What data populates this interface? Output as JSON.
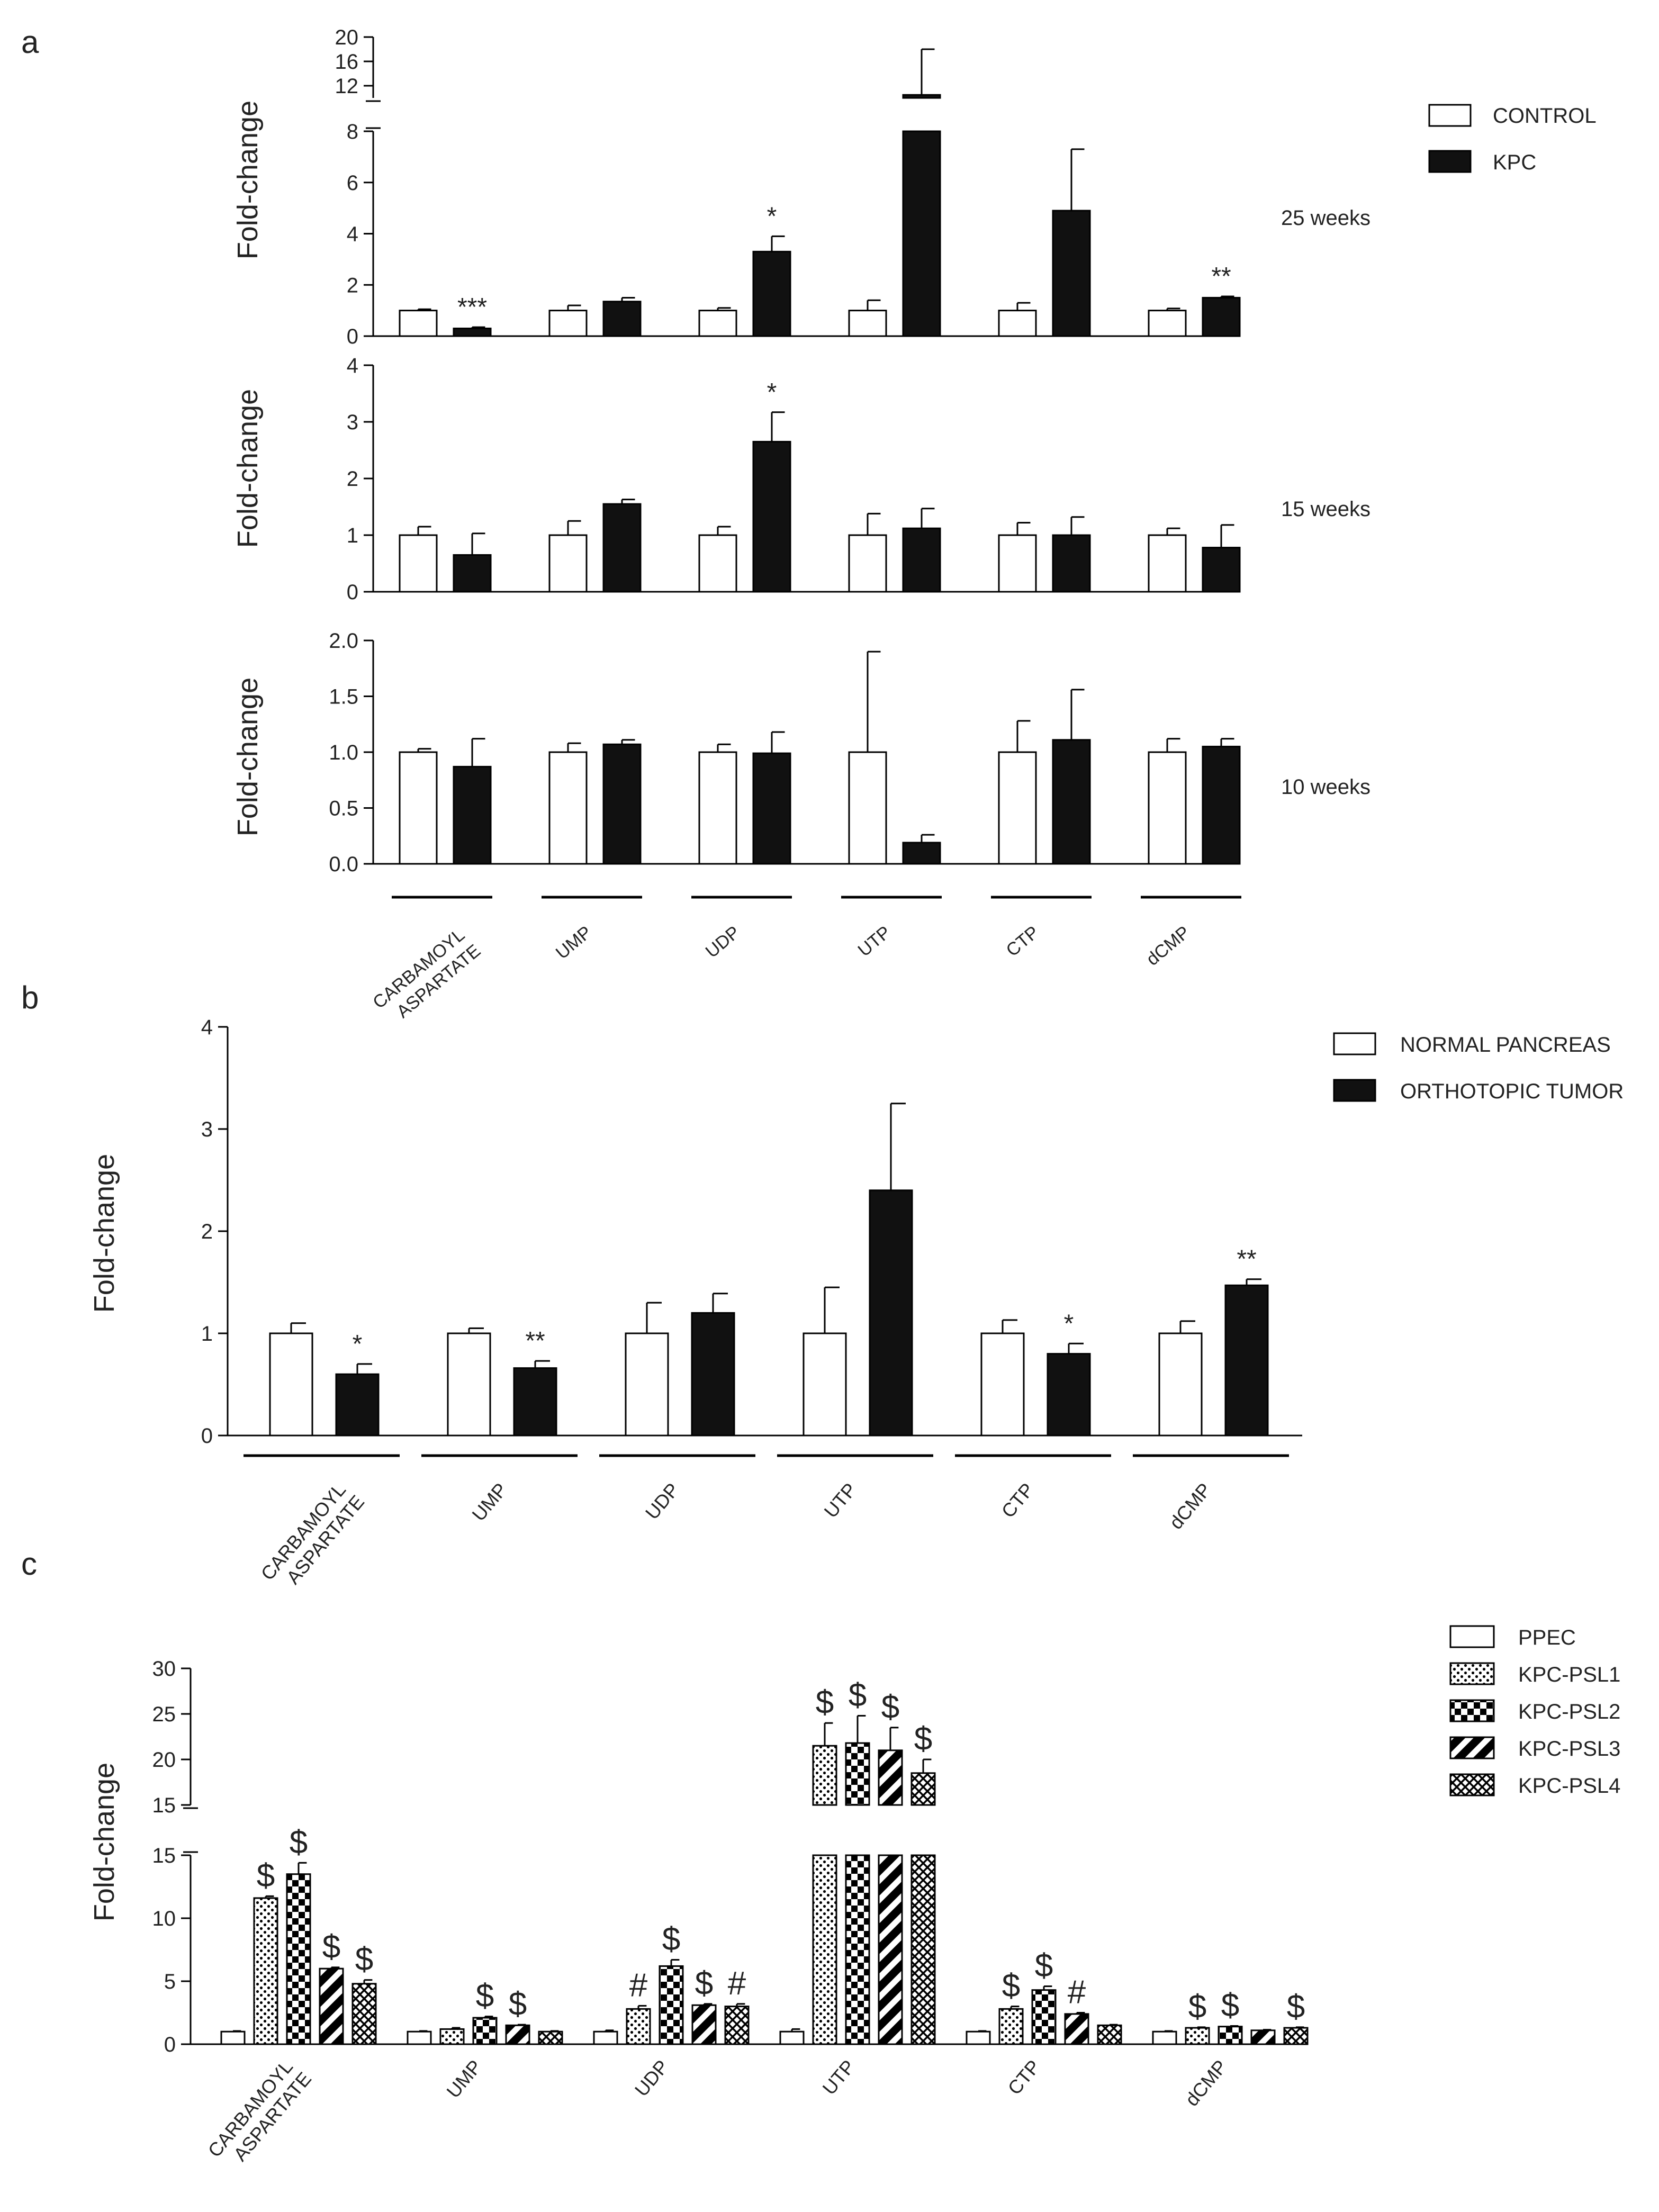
{
  "chart_data": [
    {
      "type": "bar",
      "panel": "a",
      "subpanel": "25 weeks",
      "categories": [
        "CARBAMOYL\nASPARTATE",
        "UMP",
        "UDP",
        "UTP",
        "CTP",
        "dCMP"
      ],
      "series": [
        {
          "name": "CONTROL",
          "values": [
            1.0,
            1.0,
            1.0,
            1.0,
            1.0,
            1.0
          ],
          "errors": [
            0.05,
            0.2,
            0.1,
            0.4,
            0.3,
            0.08
          ]
        },
        {
          "name": "KPC",
          "values": [
            0.3,
            1.35,
            3.3,
            10.5,
            4.9,
            1.5
          ],
          "errors": [
            0.05,
            0.15,
            0.6,
            7.5,
            2.4,
            0.05
          ]
        }
      ],
      "significance": [
        "***",
        "",
        "*",
        "",
        "",
        "**"
      ],
      "ylabel": "Fold-change",
      "ylim": [
        0,
        20
      ],
      "axis_break": [
        8,
        10
      ],
      "lower_ticks": [
        "0",
        "2",
        "4",
        "6",
        "8"
      ],
      "upper_ticks": [
        "12",
        "16",
        "20"
      ]
    },
    {
      "type": "bar",
      "panel": "a",
      "subpanel": "15 weeks",
      "series": [
        {
          "name": "CONTROL",
          "values": [
            1.0,
            1.0,
            1.0,
            1.0,
            1.0,
            1.0
          ],
          "errors": [
            0.15,
            0.25,
            0.15,
            0.38,
            0.22,
            0.12
          ]
        },
        {
          "name": "KPC",
          "values": [
            0.65,
            1.55,
            2.65,
            1.12,
            1.0,
            0.78
          ],
          "errors": [
            0.38,
            0.08,
            0.52,
            0.35,
            0.32,
            0.4
          ]
        }
      ],
      "significance": [
        "",
        "",
        "*",
        "",
        "",
        ""
      ],
      "ylabel": "Fold-change",
      "ylim": [
        0,
        4
      ],
      "ticks": [
        "0",
        "1",
        "2",
        "3",
        "4"
      ]
    },
    {
      "type": "bar",
      "panel": "a",
      "subpanel": "10 weeks",
      "series": [
        {
          "name": "CONTROL",
          "values": [
            1.0,
            1.0,
            1.0,
            1.0,
            1.0,
            1.0
          ],
          "errors": [
            0.03,
            0.08,
            0.07,
            0.9,
            0.28,
            0.12
          ]
        },
        {
          "name": "KPC",
          "values": [
            0.87,
            1.07,
            0.99,
            0.19,
            1.11,
            1.05
          ],
          "errors": [
            0.25,
            0.04,
            0.19,
            0.07,
            0.45,
            0.07
          ]
        }
      ],
      "ylabel": "Fold-change",
      "ylim": [
        0,
        2
      ],
      "ticks": [
        "0.0",
        "0.5",
        "1.0",
        "1.5",
        "2.0"
      ]
    },
    {
      "type": "bar",
      "panel": "b",
      "categories": [
        "CARBAMOYL\nASPARTATE",
        "UMP",
        "UDP",
        "UTP",
        "CTP",
        "dCMP"
      ],
      "series": [
        {
          "name": "NORMAL PANCREAS",
          "values": [
            1.0,
            1.0,
            1.0,
            1.0,
            1.0,
            1.0
          ],
          "errors": [
            0.1,
            0.05,
            0.3,
            0.45,
            0.13,
            0.12
          ]
        },
        {
          "name": "ORTHOTOPIC TUMOR",
          "values": [
            0.6,
            0.66,
            1.2,
            2.4,
            0.8,
            1.47
          ],
          "errors": [
            0.1,
            0.07,
            0.19,
            0.85,
            0.1,
            0.06
          ]
        }
      ],
      "significance": [
        "*",
        "**",
        "",
        "",
        "*",
        "**"
      ],
      "ylabel": "Fold-change",
      "ylim": [
        0,
        4
      ],
      "ticks": [
        "0",
        "1",
        "2",
        "3",
        "4"
      ]
    },
    {
      "type": "bar",
      "panel": "c",
      "categories": [
        "CARBAMOYL\nASPARTATE",
        "UMP",
        "UDP",
        "UTP",
        "CTP",
        "dCMP"
      ],
      "series": [
        {
          "name": "PPEC",
          "values": [
            1.0,
            1.0,
            1.0,
            1.0,
            1.0,
            1.0
          ],
          "errors": [
            0.05,
            0.05,
            0.1,
            0.2,
            0.05,
            0.05
          ]
        },
        {
          "name": "KPC-PSL1",
          "values": [
            11.6,
            1.2,
            2.8,
            21.5,
            2.8,
            1.3
          ],
          "errors": [
            0.15,
            0.1,
            0.25,
            2.5,
            0.2,
            0.05
          ]
        },
        {
          "name": "KPC-PSL2",
          "values": [
            13.5,
            2.1,
            6.2,
            21.8,
            4.3,
            1.4
          ],
          "errors": [
            0.9,
            0.1,
            0.5,
            3.0,
            0.3,
            0.05
          ]
        },
        {
          "name": "KPC-PSL3",
          "values": [
            6.0,
            1.5,
            3.1,
            21.0,
            2.4,
            1.1
          ],
          "errors": [
            0.1,
            0.05,
            0.1,
            2.5,
            0.1,
            0.05
          ]
        },
        {
          "name": "KPC-PSL4",
          "values": [
            4.8,
            1.0,
            3.0,
            18.5,
            1.5,
            1.3
          ],
          "errors": [
            0.3,
            0.05,
            0.2,
            1.5,
            0.05,
            0.05
          ]
        }
      ],
      "significance": [
        [
          "",
          "$",
          "$",
          "$",
          "$"
        ],
        [
          "",
          "",
          "$",
          "$",
          ""
        ],
        [
          "",
          "#",
          "$",
          "$",
          "#"
        ],
        [
          "",
          "$",
          "$",
          "$",
          "$"
        ],
        [
          "",
          "$",
          "$",
          "#",
          ""
        ],
        [
          "",
          "$",
          "$",
          "",
          "$"
        ]
      ],
      "ylabel": "Fold-change",
      "ylim": [
        0,
        30
      ],
      "axis_break": [
        15,
        15
      ],
      "lower_ticks": [
        "0",
        "5",
        "10",
        "15"
      ],
      "upper_ticks": [
        "15",
        "20",
        "25",
        "30"
      ]
    }
  ],
  "figure": {
    "panel_labels": [
      "a",
      "b",
      "c"
    ],
    "a_legend": [
      "CONTROL",
      "KPC"
    ],
    "b_legend": [
      "NORMAL PANCREAS",
      "ORTHOTOPIC TUMOR"
    ],
    "c_legend": [
      "PPEC",
      "KPC-PSL1",
      "KPC-PSL2",
      "KPC-PSL3",
      "KPC-PSL4"
    ],
    "a_timepoints": [
      "25 weeks",
      "15 weeks",
      "10 weeks"
    ],
    "ylabel": "Fold-change",
    "xlabels": [
      "CARBAMOYL",
      "ASPARTATE",
      "UMP",
      "UDP",
      "UTP",
      "CTP",
      "dCMP"
    ]
  }
}
